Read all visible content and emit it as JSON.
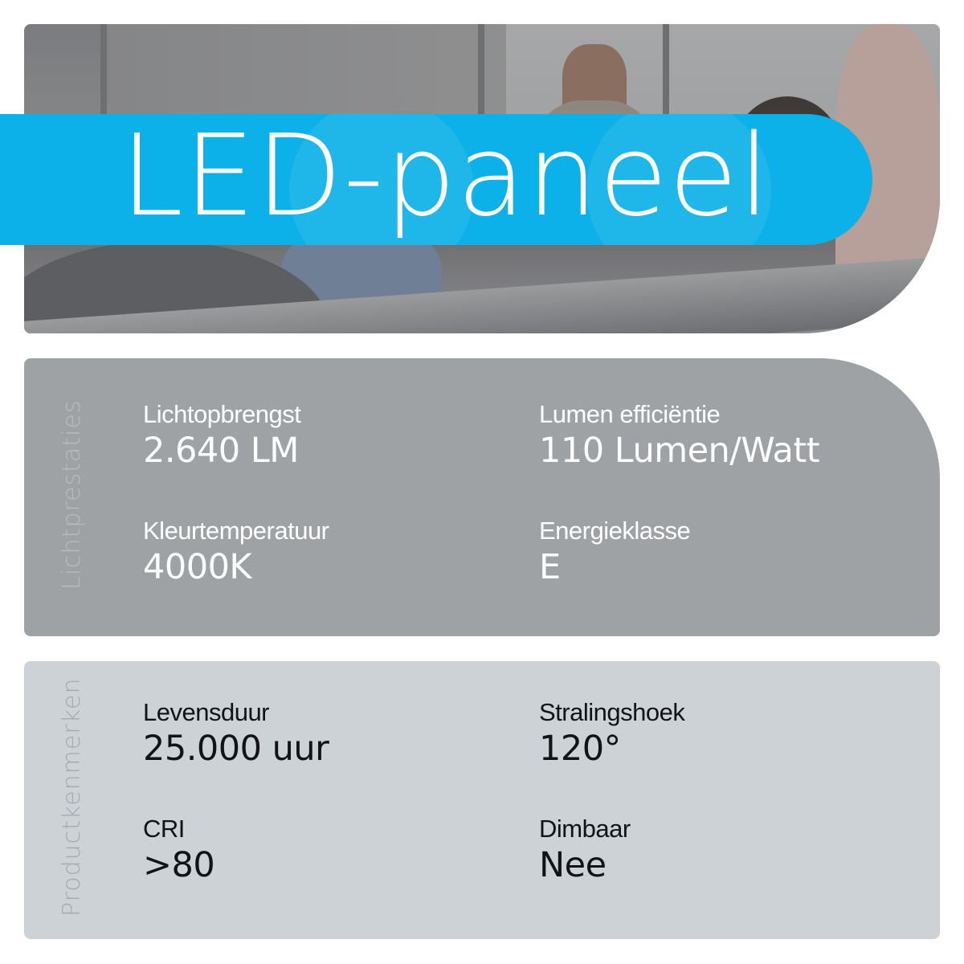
{
  "banner": {
    "title": "LED-paneel",
    "color": "#0cb1e9"
  },
  "sections": [
    {
      "heading": "Lichtprestaties",
      "background": "#9fa2a5",
      "items": [
        {
          "label": "Lichtopbrengst",
          "value": "2.640 LM"
        },
        {
          "label": "Lumen efficiëntie",
          "value": "110 Lumen/Watt"
        },
        {
          "label": "Kleurtemperatuur",
          "value": "4000K"
        },
        {
          "label": "Energieklasse",
          "value": "E"
        }
      ]
    },
    {
      "heading": "Productkenmerken",
      "background": "#cdd2d7",
      "items": [
        {
          "label": "Levensduur",
          "value": "25.000 uur"
        },
        {
          "label": "Stralingshoek",
          "value": "120°"
        },
        {
          "label": "CRI",
          "value": ">80"
        },
        {
          "label": "Dimbaar",
          "value": "Nee"
        }
      ]
    }
  ]
}
